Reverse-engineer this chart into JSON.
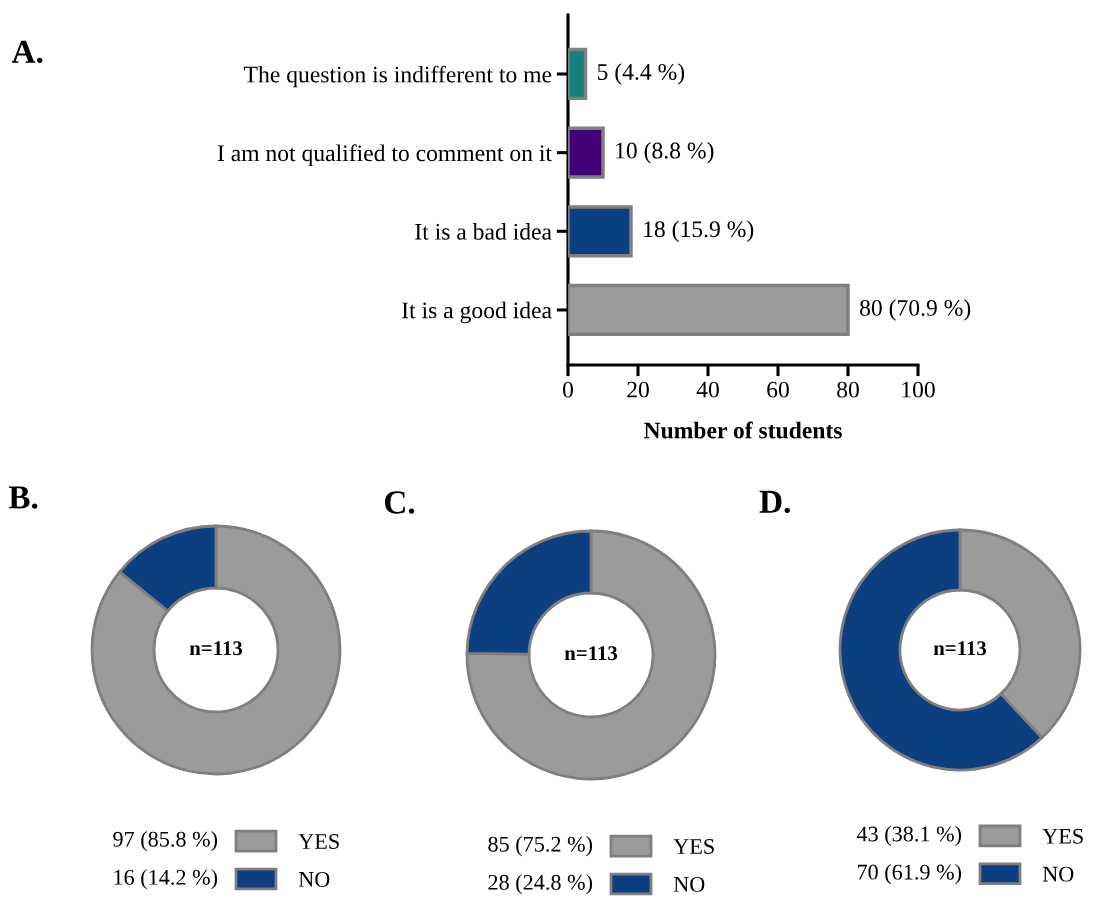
{
  "chart_data": [
    {
      "type": "bar",
      "orientation": "horizontal",
      "title": "A.",
      "xlabel": "Number of students",
      "categories": [
        "The question is indifferent to me",
        "I am not qualified to comment on it",
        "It is a bad idea",
        "It is a good idea"
      ],
      "values": [
        5,
        10,
        18,
        80
      ],
      "colors": [
        "#12837a",
        "#420079",
        "#0b3f7f",
        "#9b9b9b"
      ],
      "value_labels": [
        "5 (4.4 %)",
        "10 (8.8 %)",
        "18 (15.9 %)",
        "80 (70.9 %)"
      ],
      "xlim": [
        0,
        100
      ],
      "xticks": [
        0,
        20,
        40,
        60,
        80,
        100
      ],
      "grid": false
    },
    {
      "type": "donut",
      "title": "B.",
      "categories": [
        "YES",
        "NO"
      ],
      "values": [
        97,
        16
      ],
      "colors": [
        "#9b9b9b",
        "#0b3f7f"
      ],
      "value_labels": [
        "97 (85.8 %)",
        "16 (14.2 %)"
      ],
      "annotations": [
        "n=113"
      ],
      "legend": "bottom"
    },
    {
      "type": "donut",
      "title": "C.",
      "categories": [
        "YES",
        "NO"
      ],
      "values": [
        85,
        28
      ],
      "colors": [
        "#9b9b9b",
        "#0b3f7f"
      ],
      "value_labels": [
        "85 (75.2 %)",
        "28 (24.8 %)"
      ],
      "annotations": [
        "n=113"
      ],
      "legend": "bottom"
    },
    {
      "type": "donut",
      "title": "D.",
      "categories": [
        "YES",
        "NO"
      ],
      "values": [
        43,
        70
      ],
      "colors": [
        "#9b9b9b",
        "#0b3f7f"
      ],
      "value_labels": [
        "43 (38.1 %)",
        "70 (61.9 %)"
      ],
      "annotations": [
        "n=113"
      ],
      "legend": "bottom"
    }
  ]
}
